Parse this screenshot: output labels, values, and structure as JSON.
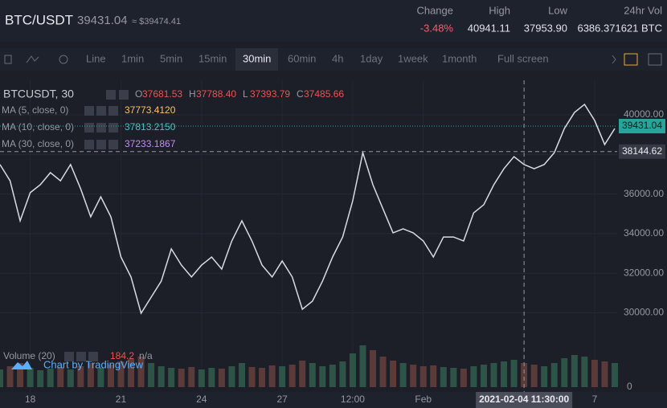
{
  "header": {
    "pair": "BTC/USDT",
    "price": "39431.04",
    "usd_price": "≈ $39474.41",
    "stats": [
      {
        "label": "Change",
        "value": "-3.48%"
      },
      {
        "label": "High",
        "value": "40941.11"
      },
      {
        "label": "Low",
        "value": "37953.90"
      },
      {
        "label": "24hr Vol",
        "value": "6386.371621 BTC"
      }
    ]
  },
  "toolbar": {
    "items": [
      "Line",
      "1min",
      "5min",
      "15min",
      "30min",
      "60min",
      "4h",
      "1day",
      "1week",
      "1month",
      "Full screen"
    ],
    "active": 4
  },
  "legend": {
    "symbol": "BTCUSDT, 30",
    "ohlc": [
      {
        "label": "O",
        "value": "37681.53"
      },
      {
        "label": "H",
        "value": "37788.40"
      },
      {
        "label": "L",
        "value": "37393.79"
      },
      {
        "label": "C",
        "value": "37485.66"
      }
    ],
    "indicators": [
      {
        "name": "MA (5, close, 0)",
        "value": "37773.4120",
        "color": "#f5c26b"
      },
      {
        "name": "MA (10, close, 0)",
        "value": "37813.2150",
        "color": "#4fc1c1"
      },
      {
        "name": "MA (30, close, 0)",
        "value": "37233.1867",
        "color": "#c38ef0"
      }
    ],
    "volume": {
      "name": "Volume (20)",
      "value": "184.2",
      "extra": "n/a"
    },
    "brand": "Chart by TradingView"
  },
  "chart_data": {
    "type": "line",
    "categories": [
      null,
      null,
      null,
      "18",
      null,
      null,
      null,
      null,
      null,
      null,
      null,
      null,
      "21",
      null,
      null,
      null,
      null,
      null,
      null,
      null,
      "24",
      null,
      null,
      null,
      null,
      null,
      null,
      null,
      "27",
      null,
      null,
      null,
      null,
      null,
      null,
      "12:00",
      null,
      null,
      null,
      null,
      null,
      null,
      "Feb",
      null,
      null,
      null,
      null,
      null,
      null,
      null,
      null,
      null,
      "2021-02-04 11:30:00",
      null,
      null,
      null,
      null,
      null,
      null,
      "7",
      null,
      null
    ],
    "series": [
      {
        "name": "BTCUSDT, 30",
        "color": "#d8dbe2",
        "values": [
          37490,
          36670,
          34650,
          36070,
          36470,
          37080,
          36670,
          37490,
          36270,
          34850,
          35860,
          34850,
          32820,
          31810,
          29980,
          30790,
          31600,
          33230,
          32410,
          31810,
          32410,
          32820,
          32210,
          33630,
          34650,
          33630,
          32410,
          31810,
          32620,
          31810,
          30180,
          30590,
          31600,
          32820,
          33830,
          35660,
          38090,
          36470,
          35250,
          34040,
          34240,
          34040,
          33630,
          32820,
          33830,
          33830,
          33630,
          35050,
          35460,
          36470,
          37280,
          37890,
          37490,
          37280,
          37490,
          38090,
          39310,
          40120,
          40530,
          39720,
          38500,
          39310
        ]
      },
      {
        "name": "Volume (20)",
        "axis": "y2",
        "values": [
          220,
          260,
          300,
          240,
          210,
          230,
          250,
          220,
          260,
          300,
          240,
          280,
          320,
          350,
          380,
          300,
          260,
          240,
          230,
          250,
          220,
          240,
          230,
          260,
          300,
          250,
          240,
          270,
          260,
          280,
          330,
          300,
          260,
          280,
          320,
          420,
          520,
          460,
          380,
          330,
          300,
          280,
          260,
          270,
          250,
          240,
          230,
          260,
          280,
          300,
          320,
          340,
          300,
          280,
          260,
          300,
          360,
          400,
          380,
          340,
          320,
          300
        ]
      }
    ],
    "ylim": [
      28000,
      42000
    ],
    "yticks": [
      {
        "value": 30000,
        "label": "30000.00"
      },
      {
        "value": 32000,
        "label": "32000.00"
      },
      {
        "value": 34000,
        "label": "34000.00"
      },
      {
        "value": 36000,
        "label": "36000.00"
      },
      {
        "value": 38000,
        "label": "38000.00"
      },
      {
        "value": 40000,
        "label": "40000.00"
      }
    ],
    "y2lim": [
      0,
      800
    ],
    "y2ticks": [
      0
    ],
    "last_price": 39431.04,
    "last_price_color": "#26a69a",
    "crosshair": {
      "price": 38144.62,
      "index": 52
    },
    "grid": true
  }
}
